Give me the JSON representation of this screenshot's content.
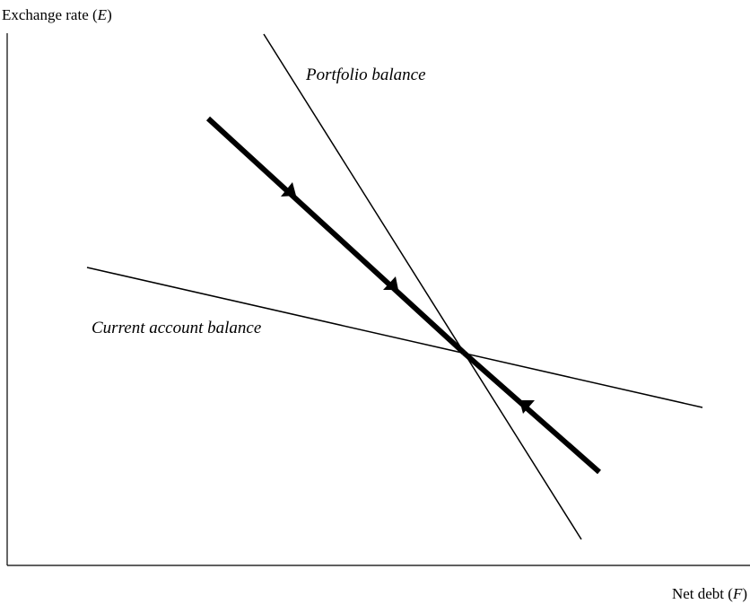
{
  "y_axis": {
    "label_prefix": "Exchange rate (",
    "label_var": "E",
    "label_suffix": ")"
  },
  "x_axis": {
    "label_prefix": "Net debt (",
    "label_var": "F",
    "label_suffix": ")"
  },
  "curves": {
    "portfolio_balance": "Portfolio balance",
    "current_account_balance": "Current account balance"
  },
  "colors": {
    "ink": "#000000",
    "background": "#ffffff"
  }
}
